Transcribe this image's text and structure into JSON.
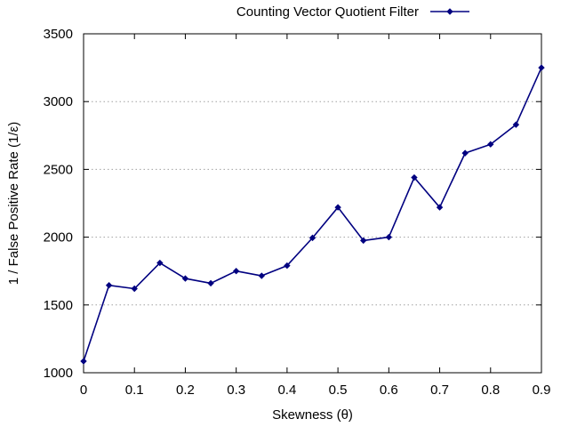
{
  "chart_data": {
    "type": "line",
    "xlabel": "Skewness (θ)",
    "ylabel": "1 / False Positive Rate (1/ε)",
    "xlim": [
      0,
      0.9
    ],
    "ylim": [
      1000,
      3500
    ],
    "x_ticks": [
      "0",
      "0.1",
      "0.2",
      "0.3",
      "0.4",
      "0.5",
      "0.6",
      "0.7",
      "0.8",
      "0.9"
    ],
    "y_ticks": [
      "1000",
      "1500",
      "2000",
      "2500",
      "3000",
      "3500"
    ],
    "grid": "horizontal dotted",
    "legend_position": "top-right (outside plot)",
    "series": [
      {
        "name": "Counting Vector Quotient Filter",
        "color": "#000080",
        "marker": "diamond",
        "x": [
          0,
          0.05,
          0.1,
          0.15,
          0.2,
          0.25,
          0.3,
          0.35,
          0.4,
          0.45,
          0.5,
          0.55,
          0.6,
          0.65,
          0.7,
          0.75,
          0.8,
          0.85,
          0.9
        ],
        "y": [
          1085,
          1645,
          1620,
          1810,
          1695,
          1660,
          1750,
          1715,
          1790,
          1995,
          2220,
          1975,
          2000,
          2440,
          2220,
          2620,
          2685,
          2830,
          3250
        ]
      }
    ]
  }
}
